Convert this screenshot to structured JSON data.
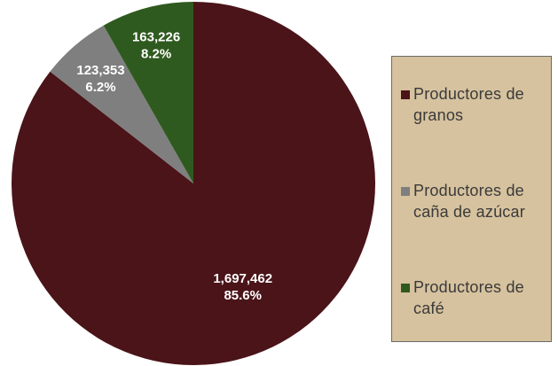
{
  "chart_data": {
    "type": "pie",
    "start_angle": "12 o'clock",
    "direction": "clockwise",
    "slices": [
      {
        "name": "Productores de granos",
        "value": 1697462,
        "value_label": "1,697,462",
        "percent_label": "85.6%",
        "color": "#4a1419"
      },
      {
        "name": "Productores de caña de azúcar",
        "value": 123353,
        "value_label": "123,353",
        "percent_label": "6.2%",
        "color": "#7f7f7f"
      },
      {
        "name": "Productores de café",
        "value": 163226,
        "value_label": "163,226",
        "percent_label": "8.2%",
        "color": "#2f5a1f"
      }
    ],
    "legend": {
      "placement": "right",
      "background": "#d6c29e",
      "items": [
        {
          "label": "Productores de granos",
          "color": "#4a1419"
        },
        {
          "label": "Productores de caña de azúcar",
          "color": "#7f7f7f"
        },
        {
          "label": "Productores de café",
          "color": "#2f5a1f"
        }
      ]
    }
  }
}
